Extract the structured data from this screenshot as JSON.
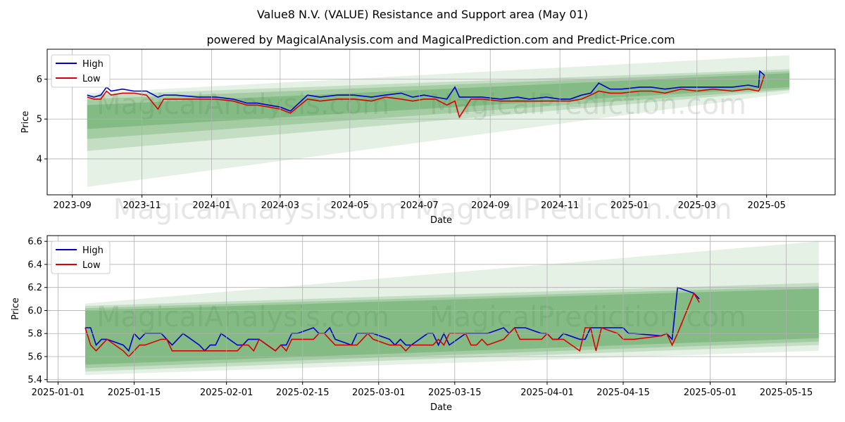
{
  "figure": {
    "title": "Value8 N.V. (VALUE) Resistance and Support area (May 01)",
    "subtitle": "powered by MagicalAnalysis.com and MagicalPrediction.com and Predict-Price.com",
    "watermarks": [
      "MagicalAnalysis.com",
      "MagicalPrediction.com"
    ]
  },
  "colors": {
    "high": "#0000cc",
    "low": "#dd0000",
    "band": "#2e8b2e",
    "grid": "#b0b0b0",
    "watermark": "#e6e6e6"
  },
  "chart_data": [
    {
      "type": "line",
      "xlabel": "Date",
      "ylabel": "Price",
      "x_tick_labels": [
        "2023-09",
        "2023-11",
        "2024-01",
        "2024-03",
        "2024-05",
        "2024-07",
        "2024-09",
        "2024-11",
        "2025-01",
        "2025-03",
        "2025-05"
      ],
      "x_ticks": [
        "2023-09-01",
        "2023-11-01",
        "2024-01-01",
        "2024-03-01",
        "2024-05-01",
        "2024-07-01",
        "2024-09-01",
        "2024-11-01",
        "2025-01-01",
        "2025-03-01",
        "2025-05-01"
      ],
      "xlim": [
        "2023-08-10",
        "2025-06-30"
      ],
      "y_ticks": [
        4,
        5,
        6
      ],
      "ylim": [
        3.1,
        6.75
      ],
      "grid": true,
      "legend": "top-left",
      "bands": {
        "x": [
          "2023-09-14",
          "2025-05-21"
        ],
        "layers": [
          {
            "lower": [
              3.3,
              5.65
            ],
            "upper": [
              5.65,
              6.6
            ],
            "opacity": 0.12
          },
          {
            "lower": [
              4.2,
              5.72
            ],
            "upper": [
              5.6,
              6.25
            ],
            "opacity": 0.18
          },
          {
            "lower": [
              4.5,
              5.75
            ],
            "upper": [
              5.5,
              6.2
            ],
            "opacity": 0.22
          },
          {
            "lower": [
              4.75,
              5.8
            ],
            "upper": [
              5.35,
              6.15
            ],
            "opacity": 0.26
          }
        ]
      },
      "series": [
        {
          "name": "High",
          "color": "#0000cc",
          "x": [
            "2023-09-14",
            "2023-09-20",
            "2023-09-26",
            "2023-10-01",
            "2023-10-05",
            "2023-10-15",
            "2023-10-25",
            "2023-11-05",
            "2023-11-15",
            "2023-11-20",
            "2023-12-01",
            "2023-12-20",
            "2024-01-05",
            "2024-01-20",
            "2024-02-01",
            "2024-02-10",
            "2024-02-20",
            "2024-03-01",
            "2024-03-10",
            "2024-03-25",
            "2024-04-05",
            "2024-04-20",
            "2024-05-05",
            "2024-05-20",
            "2024-06-01",
            "2024-06-15",
            "2024-06-25",
            "2024-07-05",
            "2024-07-15",
            "2024-07-25",
            "2024-08-01",
            "2024-08-05",
            "2024-08-15",
            "2024-08-25",
            "2024-09-10",
            "2024-09-25",
            "2024-10-05",
            "2024-10-20",
            "2024-11-01",
            "2024-11-10",
            "2024-11-20",
            "2024-11-28",
            "2024-12-05",
            "2024-12-15",
            "2024-12-25",
            "2025-01-10",
            "2025-01-20",
            "2025-02-01",
            "2025-02-15",
            "2025-03-01",
            "2025-03-15",
            "2025-04-01",
            "2025-04-15",
            "2025-04-24",
            "2025-04-25",
            "2025-04-29"
          ],
          "y": [
            5.6,
            5.55,
            5.6,
            5.8,
            5.7,
            5.75,
            5.7,
            5.7,
            5.55,
            5.6,
            5.6,
            5.55,
            5.55,
            5.5,
            5.4,
            5.4,
            5.35,
            5.3,
            5.2,
            5.6,
            5.55,
            5.6,
            5.6,
            5.55,
            5.6,
            5.65,
            5.55,
            5.6,
            5.55,
            5.5,
            5.8,
            5.55,
            5.55,
            5.55,
            5.5,
            5.55,
            5.5,
            5.55,
            5.5,
            5.5,
            5.6,
            5.65,
            5.9,
            5.75,
            5.75,
            5.8,
            5.8,
            5.75,
            5.8,
            5.8,
            5.8,
            5.8,
            5.85,
            5.8,
            6.2,
            6.1
          ]
        },
        {
          "name": "Low",
          "color": "#dd0000",
          "x": [
            "2023-09-14",
            "2023-09-20",
            "2023-09-26",
            "2023-10-01",
            "2023-10-05",
            "2023-10-15",
            "2023-10-25",
            "2023-11-05",
            "2023-11-15",
            "2023-11-20",
            "2023-12-01",
            "2023-12-20",
            "2024-01-05",
            "2024-01-20",
            "2024-02-01",
            "2024-02-10",
            "2024-02-20",
            "2024-03-01",
            "2024-03-10",
            "2024-03-25",
            "2024-04-05",
            "2024-04-20",
            "2024-05-05",
            "2024-05-20",
            "2024-06-01",
            "2024-06-15",
            "2024-06-25",
            "2024-07-05",
            "2024-07-15",
            "2024-07-25",
            "2024-08-01",
            "2024-08-05",
            "2024-08-15",
            "2024-08-25",
            "2024-09-10",
            "2024-09-25",
            "2024-10-05",
            "2024-10-20",
            "2024-11-01",
            "2024-11-10",
            "2024-11-20",
            "2024-11-28",
            "2024-12-05",
            "2024-12-15",
            "2024-12-25",
            "2025-01-10",
            "2025-01-20",
            "2025-02-01",
            "2025-02-15",
            "2025-03-01",
            "2025-03-15",
            "2025-04-01",
            "2025-04-15",
            "2025-04-24",
            "2025-04-25",
            "2025-04-29"
          ],
          "y": [
            5.55,
            5.5,
            5.5,
            5.7,
            5.6,
            5.65,
            5.65,
            5.6,
            5.25,
            5.5,
            5.5,
            5.5,
            5.5,
            5.45,
            5.35,
            5.35,
            5.3,
            5.25,
            5.15,
            5.5,
            5.45,
            5.5,
            5.5,
            5.45,
            5.55,
            5.5,
            5.45,
            5.5,
            5.5,
            5.35,
            5.45,
            5.05,
            5.5,
            5.5,
            5.45,
            5.45,
            5.45,
            5.45,
            5.45,
            5.45,
            5.5,
            5.6,
            5.7,
            5.65,
            5.65,
            5.7,
            5.7,
            5.65,
            5.75,
            5.7,
            5.75,
            5.7,
            5.75,
            5.7,
            5.75,
            6.1
          ]
        }
      ]
    },
    {
      "type": "line",
      "xlabel": "Date",
      "ylabel": "Price",
      "x_tick_labels": [
        "2025-01-01",
        "2025-01-15",
        "2025-02-01",
        "2025-02-15",
        "2025-03-01",
        "2025-03-15",
        "2025-04-01",
        "2025-04-15",
        "2025-05-01",
        "2025-05-15"
      ],
      "x_ticks": [
        "2025-01-01",
        "2025-01-15",
        "2025-02-01",
        "2025-02-15",
        "2025-03-01",
        "2025-03-15",
        "2025-04-01",
        "2025-04-15",
        "2025-05-01",
        "2025-05-15"
      ],
      "xlim": [
        "2024-12-30",
        "2025-05-24"
      ],
      "y_ticks": [
        5.4,
        5.6,
        5.8,
        6.0,
        6.2,
        6.4,
        6.6
      ],
      "ylim": [
        5.38,
        6.65
      ],
      "grid": true,
      "legend": "top-left",
      "bands": {
        "x": [
          "2025-01-06",
          "2025-05-21"
        ],
        "layers": [
          {
            "lower": [
              5.44,
              5.65
            ],
            "upper": [
              6.06,
              6.6
            ],
            "opacity": 0.12
          },
          {
            "lower": [
              5.47,
              5.7
            ],
            "upper": [
              6.04,
              6.24
            ],
            "opacity": 0.18
          },
          {
            "lower": [
              5.5,
              5.73
            ],
            "upper": [
              6.02,
              6.21
            ],
            "opacity": 0.22
          },
          {
            "lower": [
              5.53,
              5.76
            ],
            "upper": [
              6.0,
              6.19
            ],
            "opacity": 0.26
          }
        ]
      },
      "series": [
        {
          "name": "High",
          "color": "#0000cc",
          "x": [
            "2025-01-06",
            "2025-01-07",
            "2025-01-08",
            "2025-01-09",
            "2025-01-10",
            "2025-01-13",
            "2025-01-14",
            "2025-01-15",
            "2025-01-16",
            "2025-01-17",
            "2025-01-20",
            "2025-01-21",
            "2025-01-22",
            "2025-01-23",
            "2025-01-24",
            "2025-01-27",
            "2025-01-28",
            "2025-01-29",
            "2025-01-30",
            "2025-01-31",
            "2025-02-03",
            "2025-02-04",
            "2025-02-05",
            "2025-02-06",
            "2025-02-07",
            "2025-02-10",
            "2025-02-11",
            "2025-02-12",
            "2025-02-13",
            "2025-02-14",
            "2025-02-17",
            "2025-02-18",
            "2025-02-19",
            "2025-02-20",
            "2025-02-21",
            "2025-02-24",
            "2025-02-25",
            "2025-02-26",
            "2025-02-27",
            "2025-02-28",
            "2025-03-03",
            "2025-03-04",
            "2025-03-05",
            "2025-03-06",
            "2025-03-07",
            "2025-03-10",
            "2025-03-11",
            "2025-03-12",
            "2025-03-13",
            "2025-03-14",
            "2025-03-17",
            "2025-03-18",
            "2025-03-19",
            "2025-03-20",
            "2025-03-21",
            "2025-03-24",
            "2025-03-25",
            "2025-03-26",
            "2025-03-27",
            "2025-03-28",
            "2025-03-31",
            "2025-04-01",
            "2025-04-02",
            "2025-04-03",
            "2025-04-04",
            "2025-04-07",
            "2025-04-08",
            "2025-04-09",
            "2025-04-10",
            "2025-04-11",
            "2025-04-14",
            "2025-04-15",
            "2025-04-16",
            "2025-04-17",
            "2025-04-22",
            "2025-04-23",
            "2025-04-24",
            "2025-04-25",
            "2025-04-28",
            "2025-04-29"
          ],
          "y": [
            5.85,
            5.85,
            5.7,
            5.75,
            5.75,
            5.7,
            5.65,
            5.8,
            5.75,
            5.8,
            5.8,
            5.75,
            5.7,
            5.75,
            5.8,
            5.7,
            5.65,
            5.7,
            5.7,
            5.8,
            5.7,
            5.7,
            5.75,
            5.75,
            5.75,
            5.65,
            5.7,
            5.7,
            5.8,
            5.8,
            5.85,
            5.8,
            5.8,
            5.85,
            5.75,
            5.7,
            5.8,
            5.8,
            5.8,
            5.8,
            5.75,
            5.7,
            5.75,
            5.7,
            5.7,
            5.8,
            5.8,
            5.7,
            5.8,
            5.7,
            5.8,
            5.8,
            5.8,
            5.8,
            5.8,
            5.85,
            5.8,
            5.85,
            5.85,
            5.85,
            5.8,
            5.8,
            5.75,
            5.75,
            5.8,
            5.75,
            5.75,
            5.85,
            5.85,
            5.85,
            5.85,
            5.85,
            5.8,
            5.8,
            5.78,
            5.8,
            5.75,
            6.2,
            6.15,
            6.1
          ]
        },
        {
          "name": "Low",
          "color": "#dd0000",
          "x": [
            "2025-01-06",
            "2025-01-07",
            "2025-01-08",
            "2025-01-09",
            "2025-01-10",
            "2025-01-13",
            "2025-01-14",
            "2025-01-15",
            "2025-01-16",
            "2025-01-17",
            "2025-01-20",
            "2025-01-21",
            "2025-01-22",
            "2025-01-23",
            "2025-01-24",
            "2025-01-27",
            "2025-01-28",
            "2025-01-29",
            "2025-01-30",
            "2025-01-31",
            "2025-02-03",
            "2025-02-04",
            "2025-02-05",
            "2025-02-06",
            "2025-02-07",
            "2025-02-10",
            "2025-02-11",
            "2025-02-12",
            "2025-02-13",
            "2025-02-14",
            "2025-02-17",
            "2025-02-18",
            "2025-02-19",
            "2025-02-20",
            "2025-02-21",
            "2025-02-24",
            "2025-02-25",
            "2025-02-26",
            "2025-02-27",
            "2025-02-28",
            "2025-03-03",
            "2025-03-04",
            "2025-03-05",
            "2025-03-06",
            "2025-03-07",
            "2025-03-10",
            "2025-03-11",
            "2025-03-12",
            "2025-03-13",
            "2025-03-14",
            "2025-03-17",
            "2025-03-18",
            "2025-03-19",
            "2025-03-20",
            "2025-03-21",
            "2025-03-24",
            "2025-03-25",
            "2025-03-26",
            "2025-03-27",
            "2025-03-28",
            "2025-03-31",
            "2025-04-01",
            "2025-04-02",
            "2025-04-03",
            "2025-04-04",
            "2025-04-07",
            "2025-04-08",
            "2025-04-09",
            "2025-04-10",
            "2025-04-11",
            "2025-04-14",
            "2025-04-15",
            "2025-04-16",
            "2025-04-17",
            "2025-04-22",
            "2025-04-23",
            "2025-04-24",
            "2025-04-25",
            "2025-04-28",
            "2025-04-29"
          ],
          "y": [
            5.85,
            5.7,
            5.65,
            5.7,
            5.75,
            5.65,
            5.6,
            5.65,
            5.7,
            5.7,
            5.75,
            5.75,
            5.65,
            5.65,
            5.65,
            5.65,
            5.65,
            5.65,
            5.65,
            5.65,
            5.65,
            5.7,
            5.7,
            5.65,
            5.75,
            5.65,
            5.7,
            5.65,
            5.75,
            5.75,
            5.75,
            5.8,
            5.8,
            5.75,
            5.7,
            5.7,
            5.7,
            5.75,
            5.8,
            5.75,
            5.7,
            5.7,
            5.7,
            5.65,
            5.7,
            5.7,
            5.7,
            5.75,
            5.7,
            5.8,
            5.8,
            5.7,
            5.7,
            5.75,
            5.7,
            5.75,
            5.8,
            5.85,
            5.75,
            5.75,
            5.75,
            5.8,
            5.75,
            5.75,
            5.75,
            5.65,
            5.85,
            5.85,
            5.65,
            5.85,
            5.8,
            5.75,
            5.75,
            5.75,
            5.78,
            5.8,
            5.7,
            5.8,
            6.15,
            6.07
          ]
        }
      ]
    }
  ]
}
